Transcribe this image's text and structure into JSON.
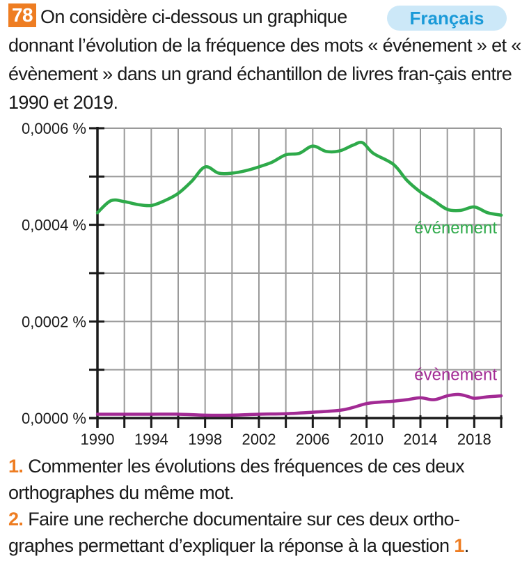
{
  "exercise": {
    "number": "78",
    "subject": "Français",
    "intro_line1": "On considère ci-dessous un graphique",
    "intro_rest": "donnant l’évolution de la fréquence des mots « événement » et « évènement »  dans un grand échantillon de livres fran-çais entre 1990 et 2019."
  },
  "questions": [
    {
      "num": "1.",
      "text": " Commenter les évolutions des fréquences de ces deux orthographes du même mot."
    },
    {
      "num": "2.",
      "text": " Faire une recherche documentaire sur ces deux ortho-graphes permettant d’expliquer la réponse à la question ",
      "ref": "1",
      "end": "."
    }
  ],
  "colors": {
    "accent_orange": "#ee7d22",
    "pill_bg": "#cce8f8",
    "pill_text": "#1a9ad8",
    "green": "#2eaa4a",
    "purple": "#a22a94",
    "grid": "#9a9a9a"
  },
  "chart_data": {
    "type": "line",
    "title": "",
    "xlabel": "",
    "ylabel": "",
    "xlim": [
      1990,
      2020
    ],
    "ylim": [
      0,
      0.0006
    ],
    "grid": true,
    "x_ticks": [
      1990,
      1992,
      1994,
      1996,
      1998,
      2000,
      2002,
      2004,
      2006,
      2008,
      2010,
      2012,
      2014,
      2016,
      2018,
      2020
    ],
    "x_tick_labels": [
      "1990",
      "1994",
      "1998",
      "2002",
      "2006",
      "2010",
      "2014",
      "2018"
    ],
    "x_tick_label_values": [
      1990,
      1994,
      1998,
      2002,
      2006,
      2010,
      2014,
      2018
    ],
    "y_ticks": [
      0,
      0.0001,
      0.0002,
      0.0003,
      0.0004,
      0.0005,
      0.0006
    ],
    "y_tick_labels": [
      "0,0000 %",
      "0,0002 %",
      "0,0004 %",
      "0,0006 %"
    ],
    "y_tick_label_values": [
      0,
      0.0002,
      0.0004,
      0.0006
    ],
    "series": [
      {
        "name": "événement",
        "color": "#2eaa4a",
        "x": [
          1990,
          1991,
          1992,
          1993,
          1994,
          1995,
          1996,
          1997,
          1998,
          1999,
          2000,
          2001,
          2002,
          2003,
          2004,
          2005,
          2006,
          2007,
          2008,
          2009,
          2009.7,
          2010.5,
          2012,
          2013,
          2014,
          2015,
          2016,
          2017,
          2018,
          2019,
          2020
        ],
        "y": [
          0.000425,
          0.00045,
          0.000448,
          0.000442,
          0.00044,
          0.00045,
          0.000465,
          0.00049,
          0.00052,
          0.000507,
          0.000507,
          0.000512,
          0.00052,
          0.00053,
          0.000545,
          0.000548,
          0.000563,
          0.000552,
          0.000553,
          0.000565,
          0.00057,
          0.000548,
          0.000525,
          0.000492,
          0.000468,
          0.00045,
          0.000432,
          0.00043,
          0.000437,
          0.000425,
          0.00042
        ]
      },
      {
        "name": "évènement",
        "color": "#a22a94",
        "x": [
          1990,
          1992,
          1994,
          1996,
          1998,
          2000,
          2002,
          2004,
          2006,
          2008,
          2009,
          2010,
          2011,
          2012,
          2013,
          2014,
          2015,
          2016,
          2016.8,
          2017.5,
          2018,
          2019,
          2020
        ],
        "y": [
          8e-06,
          8e-06,
          8e-06,
          8e-06,
          6e-06,
          6e-06,
          8e-06,
          9e-06,
          1.2e-05,
          1.6e-05,
          2.2e-05,
          3e-05,
          3.3e-05,
          3.5e-05,
          3.8e-05,
          4.2e-05,
          3.8e-05,
          4.6e-05,
          4.9e-05,
          4.5e-05,
          4.1e-05,
          4.4e-05,
          4.6e-05
        ]
      }
    ],
    "annotations": [
      {
        "text": "événement",
        "series": "événement"
      },
      {
        "text": "évènement",
        "series": "évènement"
      }
    ]
  }
}
